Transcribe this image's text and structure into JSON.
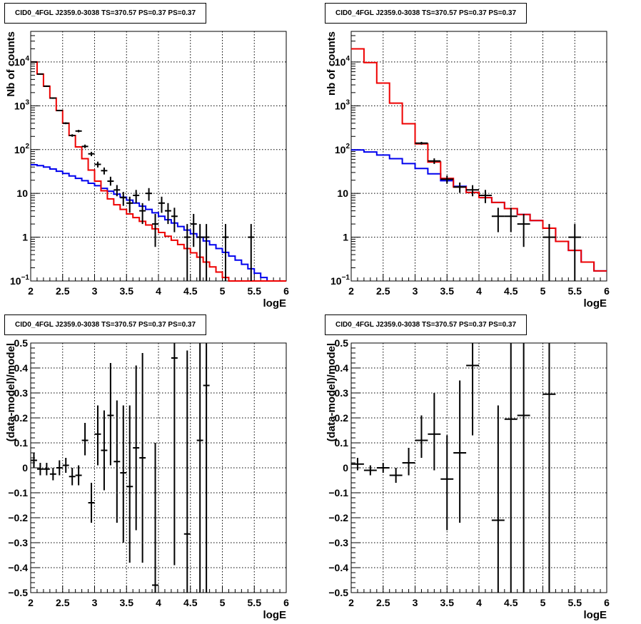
{
  "chart_data": [
    {
      "type": "histogram-log",
      "title": "CID0_4FGL J2359.0-3038 TS=370.57 PS=0.37 PS=0.37",
      "xlabel": "logE",
      "ylabel": "Nb of counts",
      "xlim": [
        2,
        6
      ],
      "ylim": [
        0.1,
        50000
      ],
      "log_y": true,
      "grid": true,
      "x_ticks": [
        "2",
        "2.5",
        "3",
        "3.5",
        "4",
        "4.5",
        "5",
        "5.5",
        "6"
      ],
      "y_ticks": [
        {
          "v": 0.1,
          "b": "10",
          "e": "−1"
        },
        {
          "v": 1,
          "b": "1",
          "e": ""
        },
        {
          "v": 10,
          "b": "10",
          "e": ""
        },
        {
          "v": 100,
          "b": "10",
          "e": "2"
        },
        {
          "v": 1000,
          "b": "10",
          "e": "3"
        },
        {
          "v": 10000,
          "b": "10",
          "e": "4"
        }
      ],
      "bin_edges": [
        2.0,
        2.1,
        2.2,
        2.3,
        2.4,
        2.5,
        2.6,
        2.7,
        2.8,
        2.9,
        3.0,
        3.1,
        3.2,
        3.3,
        3.4,
        3.5,
        3.6,
        3.7,
        3.8,
        3.9,
        4.0,
        4.1,
        4.2,
        4.3,
        4.4,
        4.5,
        4.6,
        4.7,
        4.8,
        4.9,
        5.0,
        5.1,
        5.2,
        5.3,
        5.4,
        5.5,
        5.6,
        5.7,
        5.8,
        5.9,
        6.0
      ],
      "model_total": [
        10000,
        5300,
        2800,
        1500,
        780,
        400,
        210,
        115,
        62,
        34,
        19,
        11.5,
        7.5,
        5.5,
        4.3,
        3.4,
        2.8,
        2.3,
        1.9,
        1.55,
        1.28,
        1.05,
        0.85,
        0.68,
        0.55,
        0.44,
        0.35,
        0.27,
        0.21,
        0.16,
        0.12,
        0.1,
        0.1,
        0.1,
        0.1,
        0.1,
        0.1,
        0.1,
        0.1,
        0.1
      ],
      "model_source": [
        45,
        43,
        40,
        36,
        32,
        28.5,
        25,
        22,
        19.5,
        17,
        15,
        13,
        11.2,
        9.6,
        8.2,
        7,
        6,
        5.1,
        4.3,
        3.6,
        3,
        2.5,
        2.1,
        1.75,
        1.45,
        1.2,
        1,
        0.82,
        0.67,
        0.55,
        0.45,
        0.37,
        0.3,
        0.24,
        0.19,
        0.15,
        0.12,
        0.1,
        0.1,
        0.1
      ],
      "data_points": [
        {
          "x": 2.05,
          "y": 10000,
          "lo": 9800,
          "hi": 10200
        },
        {
          "x": 2.15,
          "y": 5300,
          "lo": 5150,
          "hi": 5450
        },
        {
          "x": 2.25,
          "y": 2800,
          "lo": 2700,
          "hi": 2900
        },
        {
          "x": 2.35,
          "y": 1500,
          "lo": 1440,
          "hi": 1560
        },
        {
          "x": 2.45,
          "y": 780,
          "lo": 750,
          "hi": 810
        },
        {
          "x": 2.55,
          "y": 400,
          "lo": 380,
          "hi": 420
        },
        {
          "x": 2.65,
          "y": 210,
          "lo": 196,
          "hi": 224
        },
        {
          "x": 2.75,
          "y": 265,
          "lo": 248,
          "hi": 282
        },
        {
          "x": 2.85,
          "y": 118,
          "lo": 108,
          "hi": 130
        },
        {
          "x": 2.95,
          "y": 80,
          "lo": 71,
          "hi": 89
        },
        {
          "x": 3.05,
          "y": 46,
          "lo": 39,
          "hi": 53
        },
        {
          "x": 3.15,
          "y": 33,
          "lo": 27,
          "hi": 39
        },
        {
          "x": 3.25,
          "y": 19,
          "lo": 15,
          "hi": 24
        },
        {
          "x": 3.35,
          "y": 12,
          "lo": 8.6,
          "hi": 15.5
        },
        {
          "x": 3.45,
          "y": 8,
          "lo": 5.2,
          "hi": 10.8
        },
        {
          "x": 3.55,
          "y": 6,
          "lo": 3.6,
          "hi": 8.4
        },
        {
          "x": 3.65,
          "y": 9,
          "lo": 6,
          "hi": 12
        },
        {
          "x": 3.75,
          "y": 4,
          "lo": 2,
          "hi": 6
        },
        {
          "x": 3.85,
          "y": 10,
          "lo": 6.8,
          "hi": 13.2
        },
        {
          "x": 3.95,
          "y": 2,
          "lo": 0.6,
          "hi": 3.4
        },
        {
          "x": 4.05,
          "y": 6,
          "lo": 3.6,
          "hi": 8.4
        },
        {
          "x": 4.15,
          "y": 4,
          "lo": 2,
          "hi": 6
        },
        {
          "x": 4.25,
          "y": 3,
          "lo": 1.3,
          "hi": 4.7
        },
        {
          "x": 4.45,
          "y": 1,
          "lo": 0.1,
          "hi": 2
        },
        {
          "x": 4.55,
          "y": 2,
          "lo": 0.6,
          "hi": 3.4
        },
        {
          "x": 4.65,
          "y": 1,
          "lo": 0.1,
          "hi": 2
        },
        {
          "x": 4.75,
          "y": 1,
          "lo": 0.1,
          "hi": 2
        },
        {
          "x": 5.05,
          "y": 1,
          "lo": 0.1,
          "hi": 2
        },
        {
          "x": 5.45,
          "y": 1,
          "lo": 0.1,
          "hi": 2
        }
      ]
    },
    {
      "type": "histogram-log",
      "title": "CID0_4FGL J2359.0-3038 TS=370.57 PS=0.37 PS=0.37",
      "xlabel": "logE",
      "ylabel": "nb of counts",
      "xlim": [
        2,
        6
      ],
      "ylim": [
        0.1,
        50000
      ],
      "log_y": true,
      "grid": true,
      "x_ticks": [
        "2",
        "2.5",
        "3",
        "3.5",
        "4",
        "4.5",
        "5",
        "5.5",
        "6"
      ],
      "y_ticks": [
        {
          "v": 0.1,
          "b": "10",
          "e": "−1"
        },
        {
          "v": 1,
          "b": "1",
          "e": ""
        },
        {
          "v": 10,
          "b": "10",
          "e": ""
        },
        {
          "v": 100,
          "b": "10",
          "e": "2"
        },
        {
          "v": 1000,
          "b": "10",
          "e": "3"
        },
        {
          "v": 10000,
          "b": "10",
          "e": "4"
        }
      ],
      "bin_edges": [
        2.0,
        2.2,
        2.4,
        2.6,
        2.8,
        3.0,
        3.2,
        3.4,
        3.6,
        3.8,
        4.0,
        4.2,
        4.4,
        4.6,
        4.8,
        5.0,
        5.2,
        5.4,
        5.6,
        5.8,
        6.0
      ],
      "model_total": [
        20000,
        9700,
        3300,
        1150,
        390,
        135,
        52,
        22,
        14,
        10.5,
        8,
        6.2,
        4.5,
        3.3,
        2.4,
        1.6,
        0.8,
        0.5,
        0.27,
        0.17
      ],
      "model_source": [
        98,
        88,
        75,
        62,
        48,
        37,
        28,
        19.5,
        14.5,
        10.5,
        8,
        6.2,
        4.5,
        3.3,
        2.4,
        1.6,
        0.8,
        0.5,
        0.27,
        0.17
      ],
      "data_points": [
        {
          "x": 3.1,
          "y": 140,
          "lo": 130,
          "hi": 150
        },
        {
          "x": 3.3,
          "y": 55,
          "lo": 47,
          "hi": 63
        },
        {
          "x": 3.5,
          "y": 21,
          "lo": 16.5,
          "hi": 25.5
        },
        {
          "x": 3.7,
          "y": 14,
          "lo": 10.3,
          "hi": 17.7
        },
        {
          "x": 3.9,
          "y": 12,
          "lo": 8.6,
          "hi": 15.4
        },
        {
          "x": 4.1,
          "y": 9,
          "lo": 6,
          "hi": 12
        },
        {
          "x": 4.3,
          "y": 3,
          "lo": 1.3,
          "hi": 4.7
        },
        {
          "x": 4.5,
          "y": 3,
          "lo": 1.3,
          "hi": 4.7
        },
        {
          "x": 4.7,
          "y": 2,
          "lo": 0.6,
          "hi": 3.4
        },
        {
          "x": 5.1,
          "y": 1,
          "lo": 0.1,
          "hi": 2
        },
        {
          "x": 5.5,
          "y": 1,
          "lo": 0.1,
          "hi": 2
        }
      ]
    },
    {
      "type": "scatter-errorbar",
      "title": "CID0_4FGL J2359.0-3038 TS=370.57 PS=0.37 PS=0.37",
      "xlabel": "logE",
      "ylabel": "(data-model)/model",
      "xlim": [
        2,
        6
      ],
      "ylim": [
        -0.5,
        0.5
      ],
      "grid": true,
      "x_ticks": [
        "2",
        "2.5",
        "3",
        "3.5",
        "4",
        "4.5",
        "5",
        "5.5",
        "6"
      ],
      "y_ticks": [
        "−0.5",
        "−0.4",
        "−0.3",
        "−0.2",
        "−0.1",
        "0",
        "0.1",
        "0.2",
        "0.3",
        "0.4",
        "0.5"
      ],
      "bin_half_width": 0.05,
      "points": [
        {
          "x": 2.05,
          "y": 0.03,
          "lo": 0.0,
          "hi": 0.06
        },
        {
          "x": 2.15,
          "y": -0.005,
          "lo": -0.03,
          "hi": 0.02
        },
        {
          "x": 2.25,
          "y": -0.005,
          "lo": -0.03,
          "hi": 0.02
        },
        {
          "x": 2.35,
          "y": -0.025,
          "lo": -0.05,
          "hi": 0.0
        },
        {
          "x": 2.45,
          "y": 0.0,
          "lo": -0.03,
          "hi": 0.03
        },
        {
          "x": 2.55,
          "y": 0.01,
          "lo": -0.02,
          "hi": 0.04
        },
        {
          "x": 2.65,
          "y": -0.035,
          "lo": -0.07,
          "hi": 0.0
        },
        {
          "x": 2.75,
          "y": -0.03,
          "lo": -0.07,
          "hi": 0.01
        },
        {
          "x": 2.85,
          "y": 0.11,
          "lo": 0.05,
          "hi": 0.18
        },
        {
          "x": 2.95,
          "y": -0.14,
          "lo": -0.22,
          "hi": -0.06
        },
        {
          "x": 3.05,
          "y": 0.135,
          "lo": 0.01,
          "hi": 0.25
        },
        {
          "x": 3.15,
          "y": 0.07,
          "lo": -0.09,
          "hi": 0.23
        },
        {
          "x": 3.25,
          "y": 0.21,
          "lo": 0.01,
          "hi": 0.42
        },
        {
          "x": 3.35,
          "y": 0.025,
          "lo": -0.22,
          "hi": 0.27
        },
        {
          "x": 3.45,
          "y": -0.02,
          "lo": -0.3,
          "hi": 0.25
        },
        {
          "x": 3.55,
          "y": -0.075,
          "lo": -0.38,
          "hi": 0.25
        },
        {
          "x": 3.65,
          "y": 0.08,
          "lo": -0.25,
          "hi": 0.41
        },
        {
          "x": 3.75,
          "y": 0.04,
          "lo": -0.38,
          "hi": 0.46
        },
        {
          "x": 3.95,
          "y": -0.47,
          "lo": -0.5,
          "hi": 0.1
        },
        {
          "x": 4.25,
          "y": 0.44,
          "lo": -0.39,
          "hi": 0.5
        },
        {
          "x": 4.45,
          "y": -0.265,
          "lo": -0.5,
          "hi": 0.47
        },
        {
          "x": 4.65,
          "y": 0.11,
          "lo": -0.5,
          "hi": 0.5
        },
        {
          "x": 4.75,
          "y": 0.33,
          "lo": -0.5,
          "hi": 0.5
        }
      ]
    },
    {
      "type": "scatter-errorbar",
      "title": "CID0_4FGL J2359.0-3038 TS=370.57 PS=0.37 PS=0.37",
      "xlabel": "logE",
      "ylabel": "(data-model)/model",
      "xlim": [
        2,
        6
      ],
      "ylim": [
        -0.5,
        0.5
      ],
      "grid": true,
      "x_ticks": [
        "2",
        "2.5",
        "3",
        "3.5",
        "4",
        "4.5",
        "5",
        "5.5",
        "6"
      ],
      "y_ticks": [
        "−0.5",
        "−0.4",
        "−0.3",
        "−0.2",
        "−0.1",
        "0",
        "0.1",
        "0.2",
        "0.3",
        "0.4",
        "0.5"
      ],
      "bin_half_width": 0.1,
      "points": [
        {
          "x": 2.1,
          "y": 0.015,
          "lo": -0.01,
          "hi": 0.04
        },
        {
          "x": 2.3,
          "y": -0.01,
          "lo": -0.03,
          "hi": 0.01
        },
        {
          "x": 2.5,
          "y": 0.0,
          "lo": -0.02,
          "hi": 0.02
        },
        {
          "x": 2.7,
          "y": -0.03,
          "lo": -0.06,
          "hi": 0.0
        },
        {
          "x": 2.9,
          "y": 0.02,
          "lo": -0.03,
          "hi": 0.08
        },
        {
          "x": 3.1,
          "y": 0.11,
          "lo": 0.04,
          "hi": 0.21
        },
        {
          "x": 3.3,
          "y": 0.135,
          "lo": -0.01,
          "hi": 0.3
        },
        {
          "x": 3.5,
          "y": -0.045,
          "lo": -0.25,
          "hi": 0.13
        },
        {
          "x": 3.7,
          "y": 0.06,
          "lo": -0.22,
          "hi": 0.35
        },
        {
          "x": 3.9,
          "y": 0.41,
          "lo": 0.13,
          "hi": 0.5
        },
        {
          "x": 4.3,
          "y": -0.21,
          "lo": -0.5,
          "hi": 0.25
        },
        {
          "x": 4.5,
          "y": 0.195,
          "lo": -0.5,
          "hi": 0.5
        },
        {
          "x": 4.7,
          "y": 0.21,
          "lo": -0.5,
          "hi": 0.5
        },
        {
          "x": 5.1,
          "y": 0.295,
          "lo": -0.5,
          "hi": 0.5
        }
      ]
    }
  ]
}
